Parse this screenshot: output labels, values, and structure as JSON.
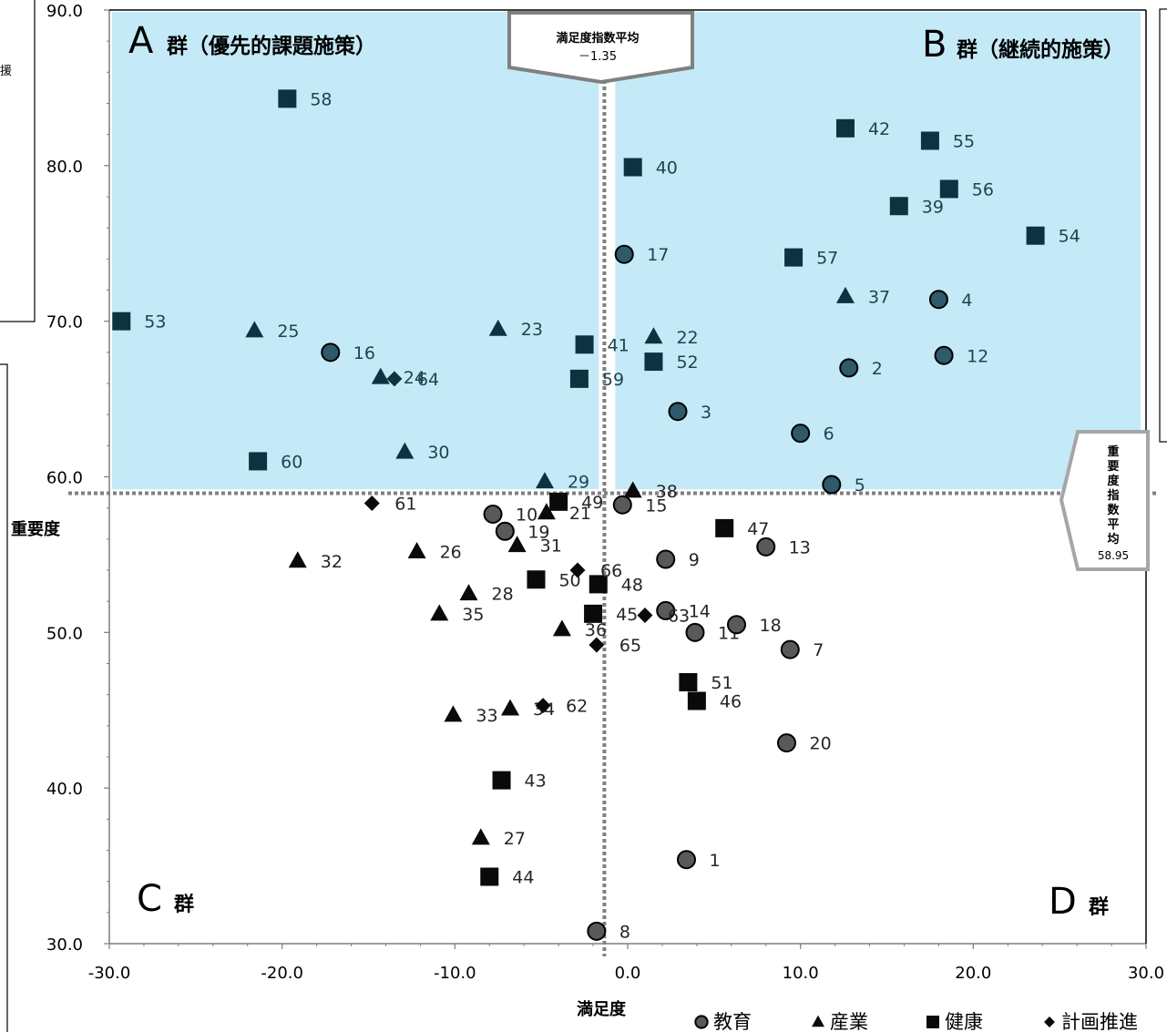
{
  "chart_data": {
    "type": "scatter",
    "xlabel": "満足度",
    "ylabel": "重要度",
    "xlim": [
      -30,
      30
    ],
    "ylim": [
      30,
      90
    ],
    "x_ticks": [
      "-30.0",
      "-20.0",
      "-10.0",
      "0.0",
      "10.0",
      "20.0",
      "30.0"
    ],
    "y_ticks": [
      "30.0",
      "40.0",
      "50.0",
      "60.0",
      "70.0",
      "80.0",
      "90.0"
    ],
    "averages": {
      "satisfaction_label": "満足度指数平均",
      "satisfaction_value_text": "－1.35",
      "satisfaction_value": -1.35,
      "importance_label": "重要度指数平均",
      "importance_value_text": "58.95",
      "importance_value": 58.95
    },
    "quadrants": {
      "a_letter": "A",
      "a_text": "群（優先的課題施策）",
      "b_letter": "B",
      "b_text": "群（継続的施策）",
      "c_letter": "C",
      "c_text": "群",
      "d_letter": "D",
      "d_text": "群"
    },
    "colors": {
      "highlight_fill": "#c5eaf7",
      "marker_dark": "#0a0a0a",
      "marker_teal": "#0d3340",
      "circle_dark": "#595959",
      "circle_teal": "#2e5a6b",
      "axis_line": "#7f7f7f",
      "average_line": "#808080"
    },
    "series": [
      {
        "name": "教育",
        "marker": "circle",
        "points": [
          {
            "id": "1",
            "x": 3.4,
            "y": 35.4
          },
          {
            "id": "2",
            "x": 12.8,
            "y": 67.0
          },
          {
            "id": "3",
            "x": 2.9,
            "y": 64.2
          },
          {
            "id": "4",
            "x": 18.0,
            "y": 71.4
          },
          {
            "id": "5",
            "x": 11.8,
            "y": 59.5
          },
          {
            "id": "6",
            "x": 10.0,
            "y": 62.8
          },
          {
            "id": "7",
            "x": 9.4,
            "y": 48.9
          },
          {
            "id": "8",
            "x": -1.8,
            "y": 30.8
          },
          {
            "id": "9",
            "x": 2.2,
            "y": 54.7
          },
          {
            "id": "10",
            "x": -7.8,
            "y": 57.6
          },
          {
            "id": "11",
            "x": 3.9,
            "y": 50.0
          },
          {
            "id": "12",
            "x": 18.3,
            "y": 67.8
          },
          {
            "id": "13",
            "x": 8.0,
            "y": 55.5
          },
          {
            "id": "14",
            "x": 2.2,
            "y": 51.4
          },
          {
            "id": "15",
            "x": -0.3,
            "y": 58.2
          },
          {
            "id": "16",
            "x": -17.2,
            "y": 68.0
          },
          {
            "id": "17",
            "x": -0.2,
            "y": 74.3
          },
          {
            "id": "18",
            "x": 6.3,
            "y": 50.5
          },
          {
            "id": "19",
            "x": -7.1,
            "y": 56.5
          },
          {
            "id": "20",
            "x": 9.2,
            "y": 42.9
          }
        ]
      },
      {
        "name": "産業",
        "marker": "triangle",
        "points": [
          {
            "id": "21",
            "x": -4.7,
            "y": 57.7
          },
          {
            "id": "22",
            "x": 1.5,
            "y": 69.0
          },
          {
            "id": "23",
            "x": -7.5,
            "y": 69.5
          },
          {
            "id": "24",
            "x": -14.3,
            "y": 66.4
          },
          {
            "id": "25",
            "x": -21.6,
            "y": 69.4
          },
          {
            "id": "26",
            "x": -12.2,
            "y": 55.2
          },
          {
            "id": "27",
            "x": -8.5,
            "y": 36.8
          },
          {
            "id": "28",
            "x": -9.2,
            "y": 52.5
          },
          {
            "id": "29",
            "x": -4.8,
            "y": 59.7
          },
          {
            "id": "30",
            "x": -12.9,
            "y": 61.6
          },
          {
            "id": "31",
            "x": -6.4,
            "y": 55.6
          },
          {
            "id": "32",
            "x": -19.1,
            "y": 54.6
          },
          {
            "id": "33",
            "x": -10.1,
            "y": 44.7
          },
          {
            "id": "34",
            "x": -6.8,
            "y": 45.1
          },
          {
            "id": "35",
            "x": -10.9,
            "y": 51.2
          },
          {
            "id": "36",
            "x": -3.8,
            "y": 50.2
          },
          {
            "id": "37",
            "x": 12.6,
            "y": 71.6
          },
          {
            "id": "38",
            "x": 0.3,
            "y": 59.1
          }
        ]
      },
      {
        "name": "健康",
        "marker": "square",
        "points": [
          {
            "id": "39",
            "x": 15.7,
            "y": 77.4
          },
          {
            "id": "40",
            "x": 0.3,
            "y": 79.9
          },
          {
            "id": "41",
            "x": -2.5,
            "y": 68.5
          },
          {
            "id": "42",
            "x": 12.6,
            "y": 82.4
          },
          {
            "id": "43",
            "x": -7.3,
            "y": 40.5
          },
          {
            "id": "44",
            "x": -8.0,
            "y": 34.3
          },
          {
            "id": "45",
            "x": -2.0,
            "y": 51.2
          },
          {
            "id": "46",
            "x": 4.0,
            "y": 45.6
          },
          {
            "id": "47",
            "x": 5.6,
            "y": 56.7
          },
          {
            "id": "48",
            "x": -1.7,
            "y": 53.1
          },
          {
            "id": "49",
            "x": -4.0,
            "y": 58.4
          },
          {
            "id": "50",
            "x": -5.3,
            "y": 53.4
          },
          {
            "id": "51",
            "x": 3.5,
            "y": 46.8
          },
          {
            "id": "52",
            "x": 1.5,
            "y": 67.4
          },
          {
            "id": "53",
            "x": -29.3,
            "y": 70.0
          },
          {
            "id": "54",
            "x": 23.6,
            "y": 75.5
          },
          {
            "id": "55",
            "x": 17.5,
            "y": 81.6
          },
          {
            "id": "56",
            "x": 18.6,
            "y": 78.5
          },
          {
            "id": "57",
            "x": 9.6,
            "y": 74.1
          },
          {
            "id": "58",
            "x": -19.7,
            "y": 84.3
          },
          {
            "id": "59",
            "x": -2.8,
            "y": 66.3
          },
          {
            "id": "60",
            "x": -21.4,
            "y": 61.0
          }
        ]
      },
      {
        "name": "計画推進",
        "marker": "diamond",
        "points": [
          {
            "id": "61",
            "x": -14.8,
            "y": 58.3
          },
          {
            "id": "62",
            "x": -4.9,
            "y": 45.3
          },
          {
            "id": "63",
            "x": 1.0,
            "y": 51.1
          },
          {
            "id": "64",
            "x": -13.5,
            "y": 66.3
          },
          {
            "id": "65",
            "x": -1.8,
            "y": 49.2
          },
          {
            "id": "66",
            "x": -2.9,
            "y": 54.0
          }
        ]
      }
    ],
    "legend": {
      "position": "bottom-right",
      "items": [
        "教育",
        "産業",
        "健康",
        "計画推進"
      ]
    },
    "edge_fragments": {
      "left_top": "援"
    }
  }
}
